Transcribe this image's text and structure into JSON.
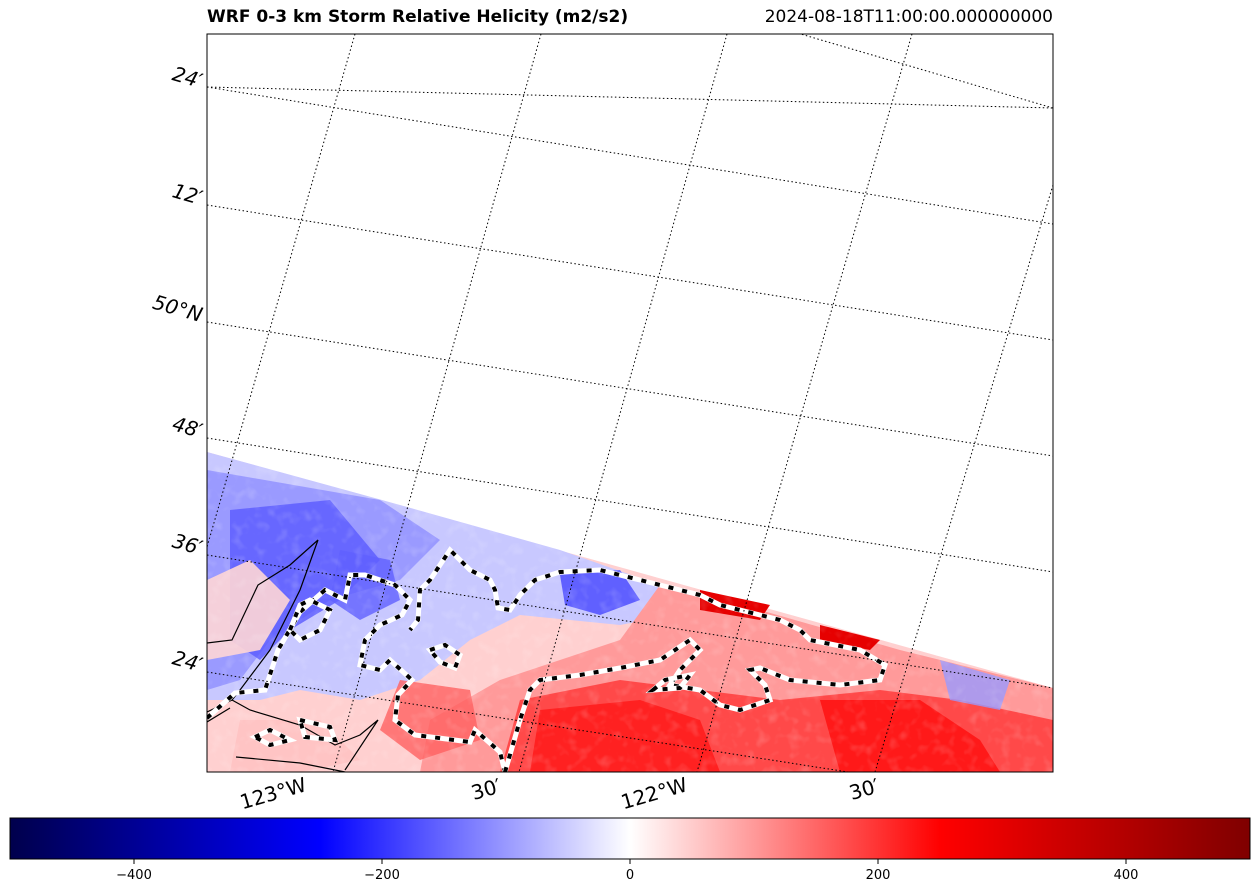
{
  "title": "WRF 0-3 km Storm Relative Helicity (m2/s2)",
  "timestamp": "2024-08-18T11:00:00.000000000",
  "map": {
    "lat_labels": [
      "24′",
      "12′",
      "50°N",
      "48′",
      "36′",
      "24′"
    ],
    "lon_labels": [
      "123°W",
      "30′",
      "122°W",
      "30′"
    ],
    "gridline_style": "dotted",
    "field": "storm relative helicity",
    "units": "m2/s2"
  },
  "colorbar": {
    "cmap": "seismic",
    "min": -500,
    "max": 500,
    "ticks": [
      -400,
      -200,
      0,
      200,
      400
    ],
    "tick_labels": [
      "−400",
      "−200",
      "0",
      "200",
      "400"
    ]
  },
  "colors": {
    "negative": "#0000ff",
    "positive": "#ff0000",
    "neutral": "#ffffff",
    "coast_dash": "#000000"
  }
}
